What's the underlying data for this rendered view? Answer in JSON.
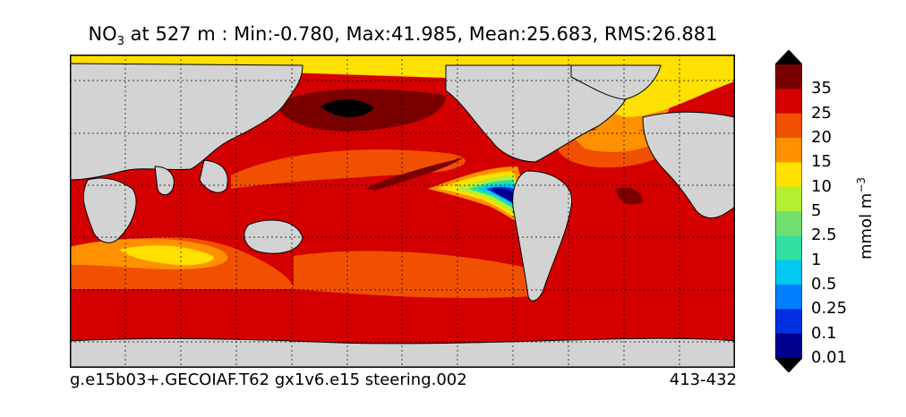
{
  "title": {
    "variable_main": "NO",
    "variable_sub": "3",
    "stats": " at 527 m : Min:-0.780, Max:41.985, Mean:25.683, RMS:26.881"
  },
  "footer": {
    "run_id": "g.e15b03+.GECOIAF.T62 gx1v6.e15 steering.002",
    "year_range": "413-432"
  },
  "colorbar": {
    "unit_main": "mmol m",
    "unit_sup": "−3",
    "labels": [
      "35",
      "25",
      "20",
      "15",
      "10",
      "5",
      "2.5",
      "1",
      "0.5",
      "0.25",
      "0.1",
      "0.01"
    ],
    "colors": [
      "#7a0000",
      "#d40000",
      "#f05000",
      "#ff9000",
      "#ffe000",
      "#b4f032",
      "#70e070",
      "#30e0a0",
      "#00c8f0",
      "#0080ff",
      "#0030e0",
      "#000090"
    ],
    "extend_colors": {
      "top": "#000000",
      "bottom": "#000000"
    }
  },
  "map": {
    "land_color": "#d3d3d3",
    "background_field_color": "#d40000",
    "grid": true
  }
}
